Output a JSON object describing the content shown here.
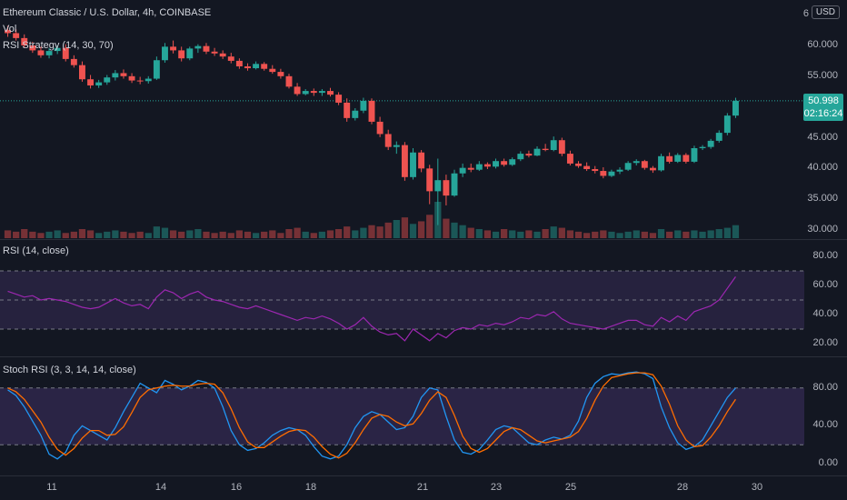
{
  "header": {
    "symbol_line": "Ethereum Classic / U.S. Dollar, 4h, COINBASE",
    "vol_label": "Vol",
    "strategy_label": "RSI Strategy (14, 30, 70)",
    "currency_button": "USD",
    "top_axis_fragment": "6"
  },
  "price_pane": {
    "axis_labels": [
      "60.000",
      "55.000",
      "50.000",
      "45.000",
      "40.000",
      "35.000",
      "30.000"
    ],
    "axis_values": [
      60,
      55,
      50,
      45,
      40,
      35,
      30
    ],
    "last_price": "50.998",
    "countdown": "02:16:24",
    "last_value": 50.998
  },
  "rsi_pane": {
    "label": "RSI (14, close)",
    "axis_labels": [
      "80.00",
      "60.00",
      "40.00",
      "20.00"
    ],
    "axis_values": [
      80,
      60,
      40,
      20
    ],
    "bands": [
      70,
      50,
      30
    ]
  },
  "stoch_pane": {
    "label": "Stoch RSI (3, 3, 14, 14, close)",
    "axis_labels": [
      "80.00",
      "40.00",
      "0.00"
    ],
    "axis_values": [
      80,
      40,
      0
    ],
    "bands": [
      80,
      20
    ]
  },
  "time_axis": {
    "labels": [
      "11",
      "14",
      "16",
      "18",
      "21",
      "23",
      "25",
      "28",
      "30"
    ]
  },
  "colors": {
    "background": "#131722",
    "up": "#26a69a",
    "down": "#ef5350",
    "rsi_line": "#9c27b0",
    "rsi_band_fill": "#7e57c2",
    "stoch_k": "#2196f3",
    "stoch_d": "#ff6d00"
  },
  "chart_data": {
    "type": "candlestick",
    "ohlc": [
      [
        62.5,
        63.2,
        61.4,
        62.0
      ],
      [
        62.0,
        62.6,
        60.8,
        61.2
      ],
      [
        61.2,
        61.8,
        59.6,
        60.0
      ],
      [
        60.0,
        60.6,
        58.8,
        59.2
      ],
      [
        59.2,
        59.8,
        58.0,
        58.4
      ],
      [
        58.4,
        59.6,
        57.9,
        59.1
      ],
      [
        59.1,
        60.0,
        58.6,
        59.6
      ],
      [
        59.6,
        60.2,
        57.4,
        57.8
      ],
      [
        57.8,
        58.4,
        56.4,
        56.8
      ],
      [
        56.8,
        57.4,
        54.1,
        54.5
      ],
      [
        54.5,
        55.2,
        53.0,
        53.5
      ],
      [
        53.5,
        54.4,
        53.1,
        54.0
      ],
      [
        54.0,
        55.2,
        53.6,
        54.8
      ],
      [
        54.8,
        56.0,
        54.3,
        55.5
      ],
      [
        55.5,
        56.1,
        54.6,
        55.0
      ],
      [
        55.0,
        55.5,
        53.9,
        54.3
      ],
      [
        54.3,
        54.9,
        53.7,
        54.2
      ],
      [
        54.2,
        55.0,
        53.8,
        54.6
      ],
      [
        54.6,
        58.2,
        54.4,
        57.6
      ],
      [
        57.6,
        60.4,
        57.2,
        59.8
      ],
      [
        59.8,
        60.8,
        58.7,
        59.2
      ],
      [
        59.2,
        59.8,
        57.4,
        57.9
      ],
      [
        57.9,
        59.8,
        57.6,
        59.5
      ],
      [
        59.5,
        60.2,
        58.8,
        59.9
      ],
      [
        59.9,
        60.4,
        58.6,
        59.0
      ],
      [
        59.0,
        59.6,
        58.3,
        58.7
      ],
      [
        58.7,
        59.2,
        57.8,
        58.2
      ],
      [
        58.2,
        58.8,
        57.1,
        57.5
      ],
      [
        57.5,
        57.9,
        56.2,
        56.6
      ],
      [
        56.6,
        57.1,
        55.9,
        56.3
      ],
      [
        56.3,
        57.4,
        56.1,
        57.0
      ],
      [
        57.0,
        57.3,
        55.9,
        56.2
      ],
      [
        56.2,
        56.8,
        55.4,
        55.7
      ],
      [
        55.7,
        56.2,
        54.6,
        55.0
      ],
      [
        55.0,
        55.4,
        53.0,
        53.3
      ],
      [
        53.3,
        53.9,
        51.8,
        52.1
      ],
      [
        52.1,
        52.9,
        51.9,
        52.6
      ],
      [
        52.6,
        53.0,
        51.8,
        52.3
      ],
      [
        52.3,
        52.9,
        51.8,
        52.6
      ],
      [
        52.6,
        53.1,
        51.7,
        52.0
      ],
      [
        52.0,
        52.4,
        50.3,
        50.7
      ],
      [
        50.7,
        51.4,
        47.6,
        48.2
      ],
      [
        48.2,
        49.8,
        47.8,
        49.4
      ],
      [
        49.4,
        51.5,
        49.0,
        51.0
      ],
      [
        51.0,
        51.4,
        47.2,
        47.6
      ],
      [
        47.6,
        48.4,
        45.1,
        45.6
      ],
      [
        45.6,
        46.3,
        43.0,
        43.5
      ],
      [
        43.5,
        44.4,
        42.4,
        43.8
      ],
      [
        43.8,
        44.3,
        38.0,
        38.6
      ],
      [
        38.6,
        43.3,
        38.2,
        42.6
      ],
      [
        42.6,
        43.0,
        39.4,
        40.0
      ],
      [
        40.0,
        40.6,
        34.2,
        36.3
      ],
      [
        36.3,
        41.6,
        30.8,
        38.1
      ],
      [
        38.1,
        39.0,
        34.0,
        35.6
      ],
      [
        35.6,
        39.8,
        35.4,
        39.2
      ],
      [
        39.2,
        40.8,
        38.6,
        40.1
      ],
      [
        40.1,
        40.8,
        39.4,
        39.8
      ],
      [
        39.8,
        41.2,
        39.6,
        40.7
      ],
      [
        40.7,
        41.0,
        39.9,
        40.3
      ],
      [
        40.3,
        41.6,
        40.0,
        41.2
      ],
      [
        41.2,
        41.6,
        40.3,
        40.6
      ],
      [
        40.6,
        41.8,
        40.4,
        41.5
      ],
      [
        41.5,
        42.8,
        41.2,
        42.4
      ],
      [
        42.4,
        42.9,
        41.8,
        42.1
      ],
      [
        42.1,
        43.6,
        42.0,
        43.2
      ],
      [
        43.2,
        44.0,
        42.8,
        43.0
      ],
      [
        43.0,
        45.2,
        42.8,
        44.6
      ],
      [
        44.6,
        45.0,
        42.0,
        42.4
      ],
      [
        42.4,
        42.9,
        40.5,
        40.8
      ],
      [
        40.8,
        41.2,
        40.1,
        40.4
      ],
      [
        40.4,
        41.0,
        39.6,
        39.9
      ],
      [
        39.9,
        40.4,
        39.2,
        39.6
      ],
      [
        39.6,
        40.2,
        38.4,
        38.8
      ],
      [
        38.8,
        39.8,
        38.6,
        39.5
      ],
      [
        39.5,
        40.2,
        39.1,
        39.8
      ],
      [
        39.8,
        41.2,
        39.6,
        40.9
      ],
      [
        40.9,
        41.5,
        40.5,
        41.2
      ],
      [
        41.2,
        41.4,
        39.8,
        40.1
      ],
      [
        40.1,
        40.4,
        39.3,
        39.7
      ],
      [
        39.7,
        42.4,
        39.5,
        42.0
      ],
      [
        42.0,
        42.6,
        40.8,
        41.1
      ],
      [
        41.1,
        42.5,
        40.9,
        42.2
      ],
      [
        42.2,
        42.5,
        40.8,
        41.1
      ],
      [
        41.1,
        43.7,
        40.9,
        43.3
      ],
      [
        43.3,
        43.8,
        43.0,
        43.5
      ],
      [
        43.5,
        44.8,
        43.2,
        44.5
      ],
      [
        44.5,
        46.2,
        44.2,
        45.8
      ],
      [
        45.8,
        49.0,
        45.4,
        48.6
      ],
      [
        48.6,
        51.5,
        48.2,
        50.998
      ]
    ],
    "volume": [
      6,
      5,
      7,
      5,
      4,
      5,
      6,
      4,
      5,
      7,
      6,
      4,
      5,
      6,
      5,
      4,
      5,
      4,
      9,
      8,
      6,
      5,
      6,
      7,
      5,
      4,
      5,
      4,
      6,
      5,
      4,
      5,
      6,
      4,
      7,
      8,
      5,
      4,
      5,
      6,
      7,
      9,
      6,
      8,
      10,
      9,
      12,
      14,
      16,
      11,
      13,
      18,
      28,
      15,
      12,
      10,
      8,
      7,
      6,
      5,
      7,
      6,
      5,
      6,
      5,
      7,
      9,
      8,
      6,
      5,
      4,
      5,
      6,
      5,
      4,
      5,
      6,
      5,
      4,
      7,
      5,
      6,
      5,
      6,
      5,
      6,
      7,
      8,
      10
    ],
    "rsi": [
      56,
      54,
      52,
      53,
      50,
      51,
      50,
      49,
      47,
      45,
      44,
      45,
      48,
      51,
      48,
      46,
      47,
      44,
      52,
      57,
      55,
      51,
      54,
      56,
      52,
      50,
      49,
      47,
      45,
      44,
      46,
      44,
      42,
      40,
      38,
      36,
      38,
      37,
      39,
      37,
      34,
      30,
      33,
      38,
      32,
      28,
      26,
      27,
      22,
      30,
      26,
      22,
      27,
      24,
      29,
      31,
      30,
      33,
      32,
      34,
      33,
      35,
      38,
      37,
      40,
      39,
      42,
      37,
      34,
      33,
      32,
      31,
      30,
      32,
      34,
      36,
      36,
      33,
      32,
      38,
      35,
      39,
      36,
      42,
      44,
      46,
      50,
      58,
      66
    ],
    "stoch_k": [
      78,
      72,
      60,
      45,
      30,
      10,
      5,
      12,
      30,
      40,
      35,
      30,
      25,
      38,
      55,
      70,
      85,
      80,
      75,
      88,
      84,
      78,
      82,
      88,
      86,
      80,
      60,
      35,
      20,
      14,
      16,
      22,
      30,
      35,
      38,
      36,
      30,
      18,
      8,
      5,
      8,
      20,
      38,
      50,
      55,
      52,
      44,
      36,
      38,
      50,
      70,
      80,
      78,
      50,
      25,
      12,
      10,
      15,
      25,
      36,
      40,
      38,
      30,
      22,
      20,
      25,
      28,
      26,
      30,
      45,
      70,
      85,
      92,
      95,
      94,
      96,
      97,
      95,
      90,
      60,
      38,
      22,
      15,
      18,
      25,
      40,
      55,
      70,
      80
    ],
    "stoch_d": [
      80,
      76,
      68,
      56,
      44,
      28,
      15,
      9,
      16,
      27,
      35,
      35,
      30,
      31,
      39,
      54,
      70,
      78,
      80,
      82,
      83,
      82,
      82,
      84,
      85,
      84,
      75,
      58,
      38,
      23,
      17,
      17,
      23,
      29,
      34,
      36,
      35,
      28,
      18,
      10,
      6,
      11,
      22,
      36,
      48,
      52,
      50,
      44,
      40,
      42,
      53,
      67,
      76,
      70,
      51,
      29,
      16,
      12,
      16,
      25,
      34,
      38,
      36,
      30,
      24,
      22,
      24,
      26,
      28,
      34,
      48,
      67,
      82,
      91,
      93,
      95,
      96,
      96,
      94,
      82,
      63,
      40,
      25,
      18,
      19,
      28,
      40,
      55,
      68
    ]
  }
}
